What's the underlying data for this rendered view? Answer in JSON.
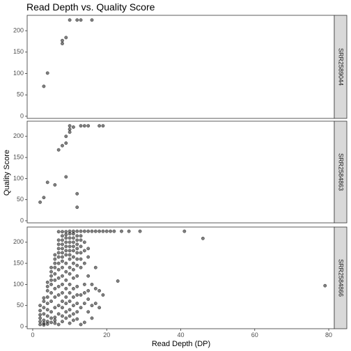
{
  "chart_data": {
    "type": "scatter",
    "title": "Read Depth vs. Quality Score",
    "xlabel": "Read Depth (DP)",
    "ylabel": "Quality Score",
    "xlim": [
      -1.5,
      81.5
    ],
    "ylim": [
      -5,
      236
    ],
    "xticks": [
      0,
      20,
      40,
      60,
      80
    ],
    "yticks": [
      0,
      50,
      100,
      150,
      200
    ],
    "facet_position": "right",
    "grid": false,
    "panels": [
      {
        "label": "SRR2589044",
        "points": [
          [
            3,
            70
          ],
          [
            4,
            101
          ],
          [
            8,
            170
          ],
          [
            8,
            177
          ],
          [
            9,
            184
          ],
          [
            10,
            225
          ],
          [
            12,
            225
          ],
          [
            13,
            225
          ],
          [
            16,
            225
          ]
        ]
      },
      {
        "label": "SRR2584863",
        "points": [
          [
            2,
            44
          ],
          [
            3,
            55
          ],
          [
            4,
            91
          ],
          [
            6,
            85
          ],
          [
            7,
            168
          ],
          [
            8,
            178
          ],
          [
            9,
            104
          ],
          [
            9,
            184
          ],
          [
            9,
            200
          ],
          [
            10,
            210
          ],
          [
            10,
            217
          ],
          [
            10,
            225
          ],
          [
            11,
            222
          ],
          [
            12,
            32
          ],
          [
            12,
            64
          ],
          [
            13,
            225
          ],
          [
            14,
            225
          ],
          [
            15,
            225
          ],
          [
            18,
            225
          ],
          [
            19,
            225
          ]
        ]
      },
      {
        "label": "SRR2584866",
        "points": [
          [
            2,
            5
          ],
          [
            2,
            12
          ],
          [
            2,
            20
          ],
          [
            2,
            28
          ],
          [
            2,
            38
          ],
          [
            2,
            50
          ],
          [
            3,
            4
          ],
          [
            3,
            8
          ],
          [
            3,
            15
          ],
          [
            3,
            30
          ],
          [
            3,
            45
          ],
          [
            3,
            60
          ],
          [
            3,
            68
          ],
          [
            4,
            6
          ],
          [
            4,
            12
          ],
          [
            4,
            25
          ],
          [
            4,
            40
          ],
          [
            4,
            55
          ],
          [
            4,
            70
          ],
          [
            4,
            85
          ],
          [
            4,
            95
          ],
          [
            4,
            105
          ],
          [
            5,
            10
          ],
          [
            5,
            20
          ],
          [
            5,
            35
          ],
          [
            5,
            60
          ],
          [
            5,
            80
          ],
          [
            5,
            100
          ],
          [
            5,
            110
          ],
          [
            5,
            120
          ],
          [
            5,
            130
          ],
          [
            5,
            140
          ],
          [
            6,
            8
          ],
          [
            6,
            15
          ],
          [
            6,
            22
          ],
          [
            6,
            45
          ],
          [
            6,
            70
          ],
          [
            6,
            90
          ],
          [
            6,
            110
          ],
          [
            6,
            125
          ],
          [
            6,
            140
          ],
          [
            6,
            150
          ],
          [
            6,
            160
          ],
          [
            6,
            170
          ],
          [
            7,
            5
          ],
          [
            7,
            30
          ],
          [
            7,
            50
          ],
          [
            7,
            75
          ],
          [
            7,
            95
          ],
          [
            7,
            115
          ],
          [
            7,
            135
          ],
          [
            7,
            150
          ],
          [
            7,
            165
          ],
          [
            7,
            175
          ],
          [
            7,
            185
          ],
          [
            7,
            195
          ],
          [
            7,
            205
          ],
          [
            7,
            225
          ],
          [
            8,
            12
          ],
          [
            8,
            25
          ],
          [
            8,
            45
          ],
          [
            8,
            60
          ],
          [
            8,
            80
          ],
          [
            8,
            100
          ],
          [
            8,
            120
          ],
          [
            8,
            140
          ],
          [
            8,
            155
          ],
          [
            8,
            165
          ],
          [
            8,
            175
          ],
          [
            8,
            185
          ],
          [
            8,
            195
          ],
          [
            8,
            205
          ],
          [
            8,
            215
          ],
          [
            8,
            225
          ],
          [
            9,
            20
          ],
          [
            9,
            35
          ],
          [
            9,
            55
          ],
          [
            9,
            70
          ],
          [
            9,
            90
          ],
          [
            9,
            110
          ],
          [
            9,
            130
          ],
          [
            9,
            150
          ],
          [
            9,
            170
          ],
          [
            9,
            180
          ],
          [
            9,
            190
          ],
          [
            9,
            200
          ],
          [
            9,
            210
          ],
          [
            9,
            218
          ],
          [
            9,
            225
          ],
          [
            10,
            8
          ],
          [
            10,
            25
          ],
          [
            10,
            40
          ],
          [
            10,
            60
          ],
          [
            10,
            80
          ],
          [
            10,
            100
          ],
          [
            10,
            125
          ],
          [
            10,
            140
          ],
          [
            10,
            160
          ],
          [
            10,
            170
          ],
          [
            10,
            180
          ],
          [
            10,
            190
          ],
          [
            10,
            200
          ],
          [
            10,
            210
          ],
          [
            10,
            220
          ],
          [
            10,
            226
          ],
          [
            11,
            15
          ],
          [
            11,
            30
          ],
          [
            11,
            50
          ],
          [
            11,
            70
          ],
          [
            11,
            90
          ],
          [
            11,
            115
          ],
          [
            11,
            135
          ],
          [
            11,
            150
          ],
          [
            11,
            165
          ],
          [
            11,
            180
          ],
          [
            11,
            190
          ],
          [
            11,
            200
          ],
          [
            11,
            210
          ],
          [
            11,
            220
          ],
          [
            11,
            226
          ],
          [
            12,
            18
          ],
          [
            12,
            35
          ],
          [
            12,
            55
          ],
          [
            12,
            75
          ],
          [
            12,
            95
          ],
          [
            12,
            120
          ],
          [
            12,
            145
          ],
          [
            12,
            160
          ],
          [
            12,
            175
          ],
          [
            12,
            185
          ],
          [
            12,
            195
          ],
          [
            12,
            205
          ],
          [
            12,
            215
          ],
          [
            12,
            226
          ],
          [
            13,
            5
          ],
          [
            13,
            45
          ],
          [
            13,
            75
          ],
          [
            13,
            140
          ],
          [
            13,
            160
          ],
          [
            13,
            175
          ],
          [
            13,
            190
          ],
          [
            13,
            205
          ],
          [
            13,
            215
          ],
          [
            13,
            226
          ],
          [
            14,
            10
          ],
          [
            14,
            55
          ],
          [
            14,
            80
          ],
          [
            14,
            100
          ],
          [
            14,
            150
          ],
          [
            14,
            180
          ],
          [
            14,
            200
          ],
          [
            14,
            226
          ],
          [
            15,
            35
          ],
          [
            15,
            65
          ],
          [
            15,
            85
          ],
          [
            15,
            120
          ],
          [
            15,
            165
          ],
          [
            15,
            185
          ],
          [
            15,
            226
          ],
          [
            16,
            20
          ],
          [
            16,
            50
          ],
          [
            16,
            100
          ],
          [
            16,
            226
          ],
          [
            17,
            55
          ],
          [
            17,
            90
          ],
          [
            17,
            140
          ],
          [
            17,
            226
          ],
          [
            18,
            45
          ],
          [
            18,
            85
          ],
          [
            18,
            226
          ],
          [
            19,
            75
          ],
          [
            19,
            226
          ],
          [
            20,
            226
          ],
          [
            21,
            226
          ],
          [
            22,
            226
          ],
          [
            23,
            108
          ],
          [
            24,
            226
          ],
          [
            26,
            226
          ],
          [
            29,
            226
          ],
          [
            41,
            226
          ],
          [
            46,
            209
          ],
          [
            79,
            97
          ]
        ]
      }
    ]
  }
}
